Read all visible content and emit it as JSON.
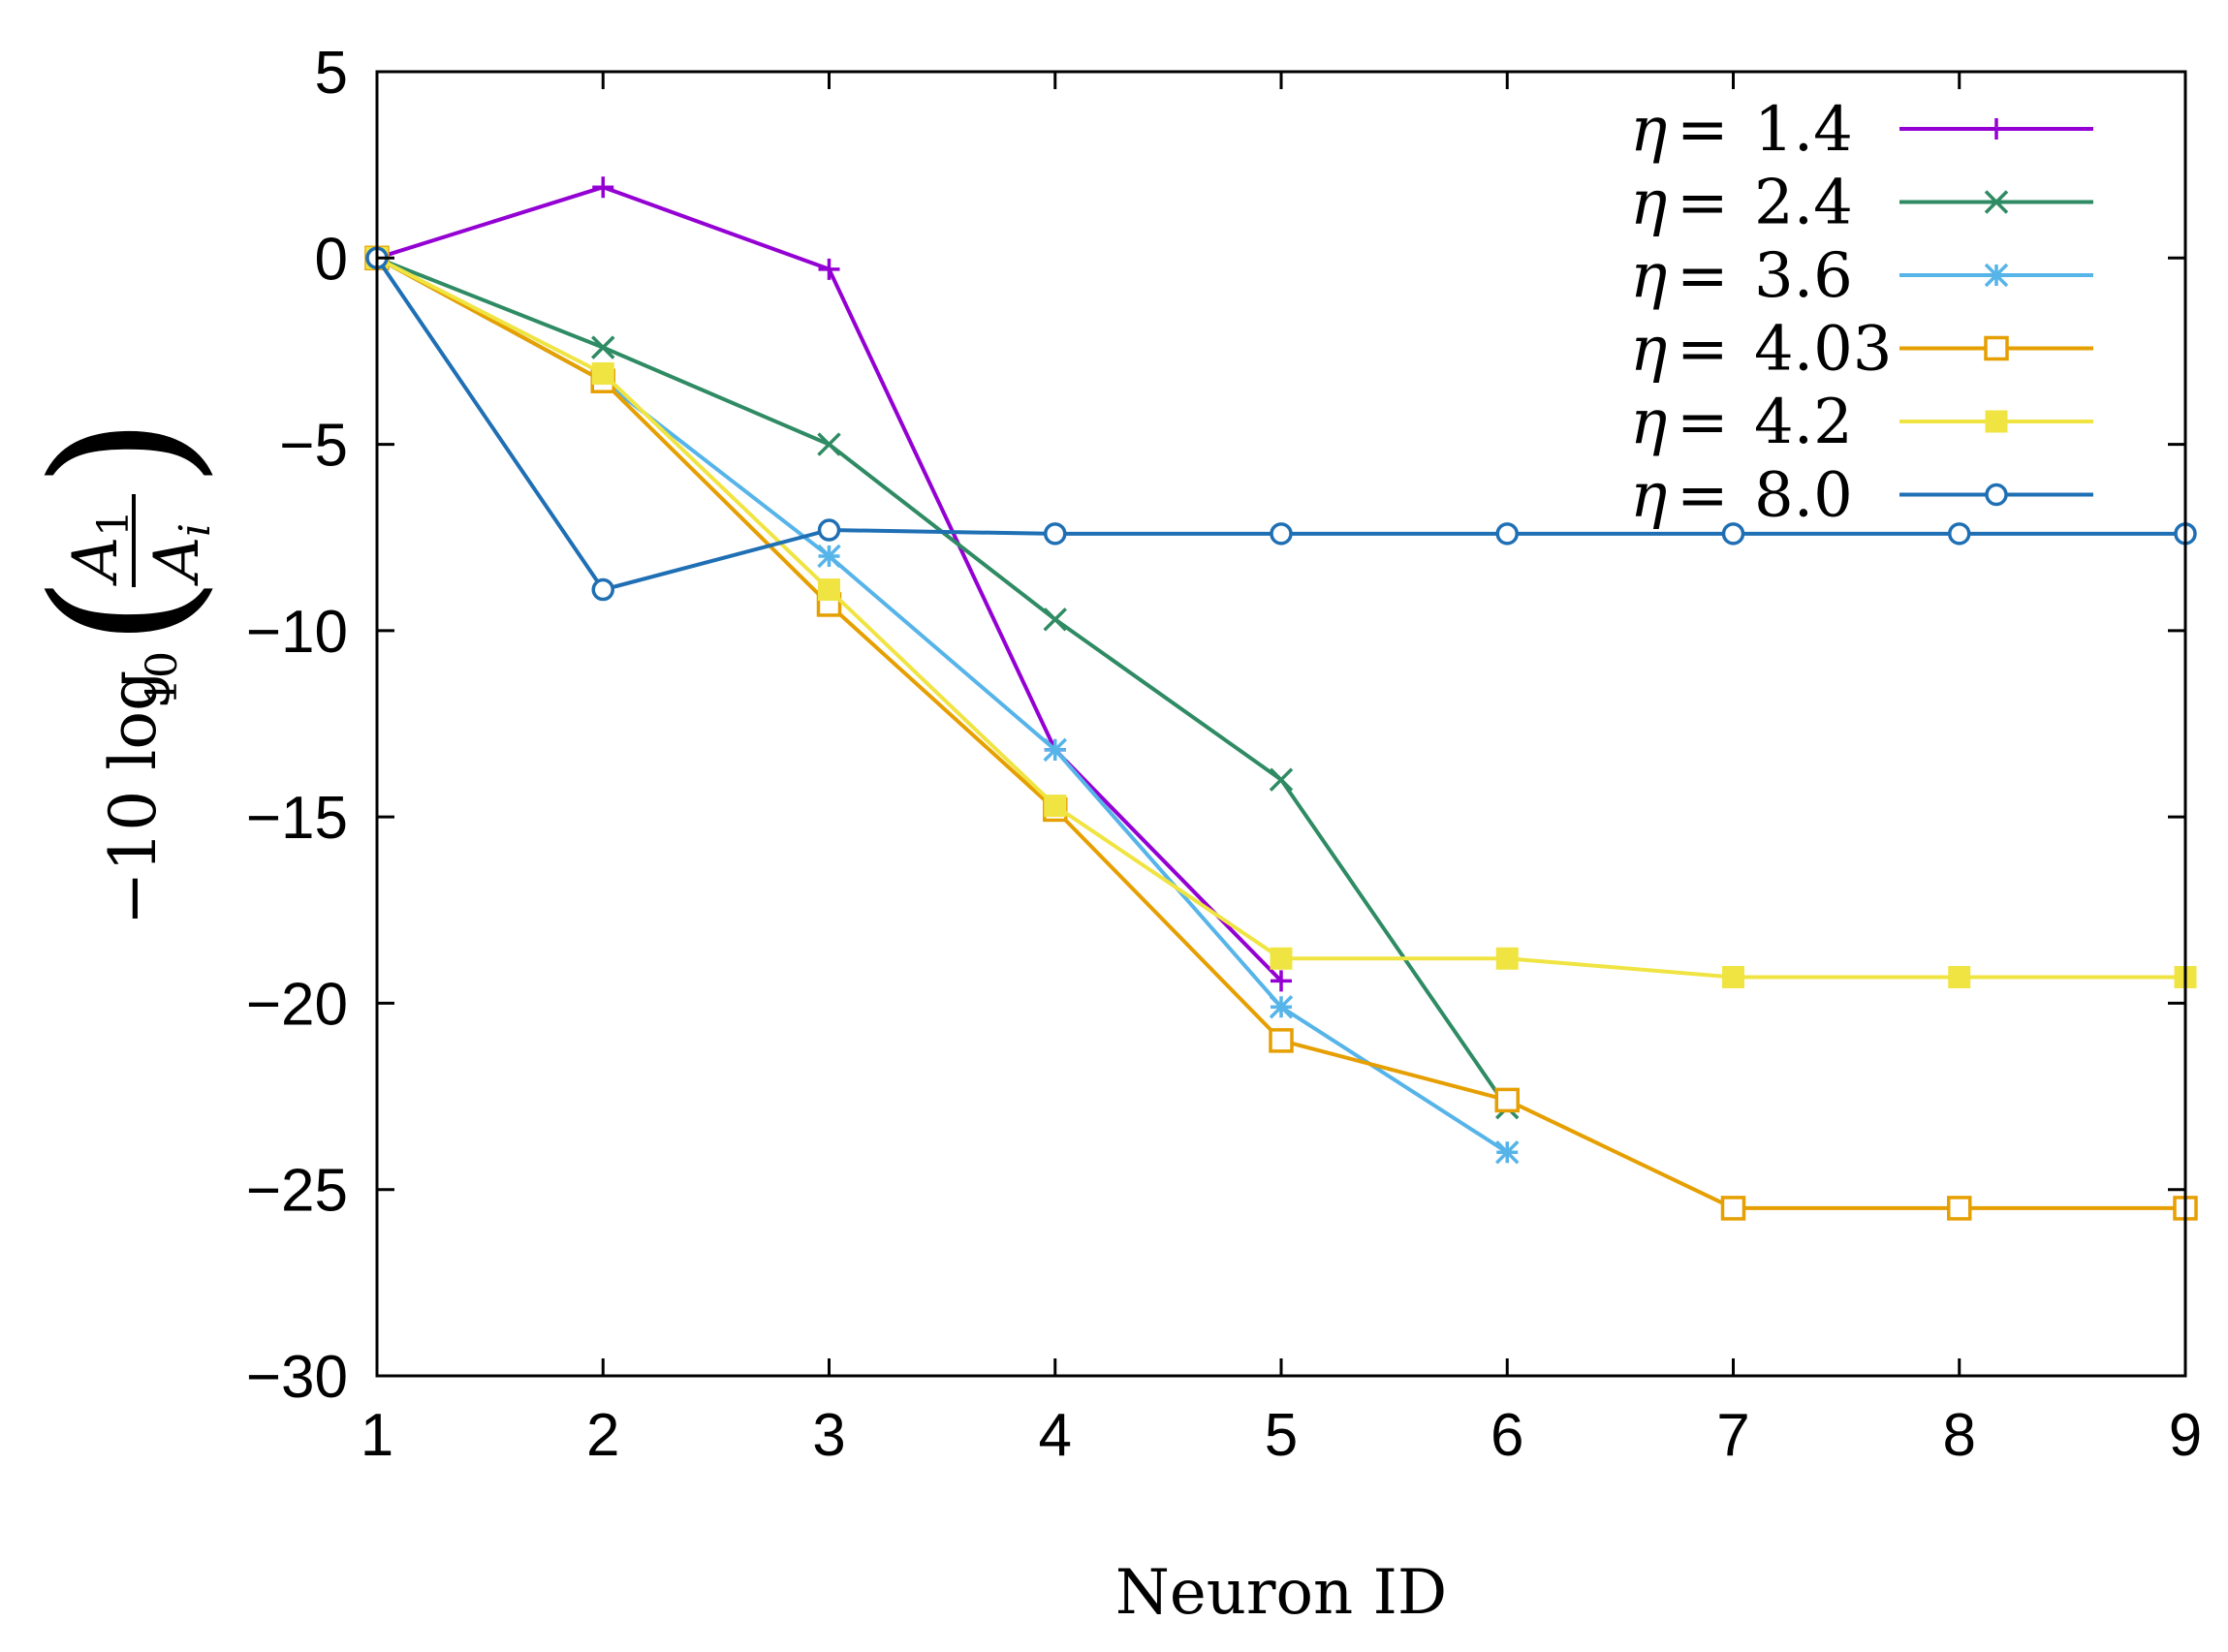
{
  "chart_data": {
    "type": "line",
    "title": "",
    "xlabel": "Neuron ID",
    "ylabel": {
      "prefix": "−10 log",
      "subscript": "10",
      "numerator": "A",
      "numerator_sub": "1",
      "denominator": "A",
      "denominator_sub": "i"
    },
    "xlim": [
      1,
      9
    ],
    "ylim": [
      -30,
      5
    ],
    "xticks": [
      1,
      2,
      3,
      4,
      5,
      6,
      7,
      8,
      9
    ],
    "yticks": [
      5,
      0,
      -5,
      -10,
      -15,
      -20,
      -25,
      -30
    ],
    "ytick_labels": [
      "5",
      "0",
      "−5",
      "−10",
      "−15",
      "−20",
      "−25",
      "−30"
    ],
    "grid": false,
    "legend_position": "top-right",
    "series": [
      {
        "name": "η = 1.4",
        "symbol": "η",
        "value": "1.4",
        "color": "#9400d3",
        "marker": "plus",
        "x": [
          1,
          2,
          3,
          4,
          5
        ],
        "y": [
          0,
          1.9,
          -0.3,
          -13.2,
          -19.4
        ]
      },
      {
        "name": "η = 2.4",
        "symbol": "η",
        "value": "2.4",
        "color": "#2e8b63",
        "marker": "cross",
        "x": [
          1,
          2,
          3,
          4,
          5,
          6
        ],
        "y": [
          0,
          -2.4,
          -5.0,
          -9.7,
          -14.0,
          -22.8
        ]
      },
      {
        "name": "η = 3.6",
        "symbol": "η",
        "value": "3.6",
        "color": "#56b4e9",
        "marker": "star",
        "x": [
          1,
          2,
          3,
          4,
          5,
          6
        ],
        "y": [
          0,
          -3.3,
          -8.0,
          -13.2,
          -20.1,
          -24.0
        ]
      },
      {
        "name": "η = 4.03",
        "symbol": "η",
        "value": "4.03",
        "color": "#e69f00",
        "marker": "open-square",
        "x": [
          1,
          2,
          3,
          4,
          5,
          6,
          7,
          8,
          9
        ],
        "y": [
          0,
          -3.3,
          -9.3,
          -14.8,
          -21.0,
          -22.6,
          -25.5,
          -25.5,
          -25.5
        ]
      },
      {
        "name": "η = 4.2",
        "symbol": "η",
        "value": "4.2",
        "color": "#f0e442",
        "marker": "filled-square",
        "x": [
          1,
          2,
          3,
          4,
          5,
          6,
          7,
          8,
          9
        ],
        "y": [
          0,
          -3.1,
          -8.9,
          -14.7,
          -18.8,
          -18.8,
          -19.3,
          -19.3,
          -19.3
        ]
      },
      {
        "name": "η = 8.0",
        "symbol": "η",
        "value": "8.0",
        "color": "#1f6fb4",
        "marker": "open-circle",
        "x": [
          1,
          2,
          3,
          4,
          5,
          6,
          7,
          8,
          9
        ],
        "y": [
          0,
          -8.9,
          -7.3,
          -7.4,
          -7.4,
          -7.4,
          -7.4,
          -7.4,
          -7.4
        ]
      }
    ]
  }
}
